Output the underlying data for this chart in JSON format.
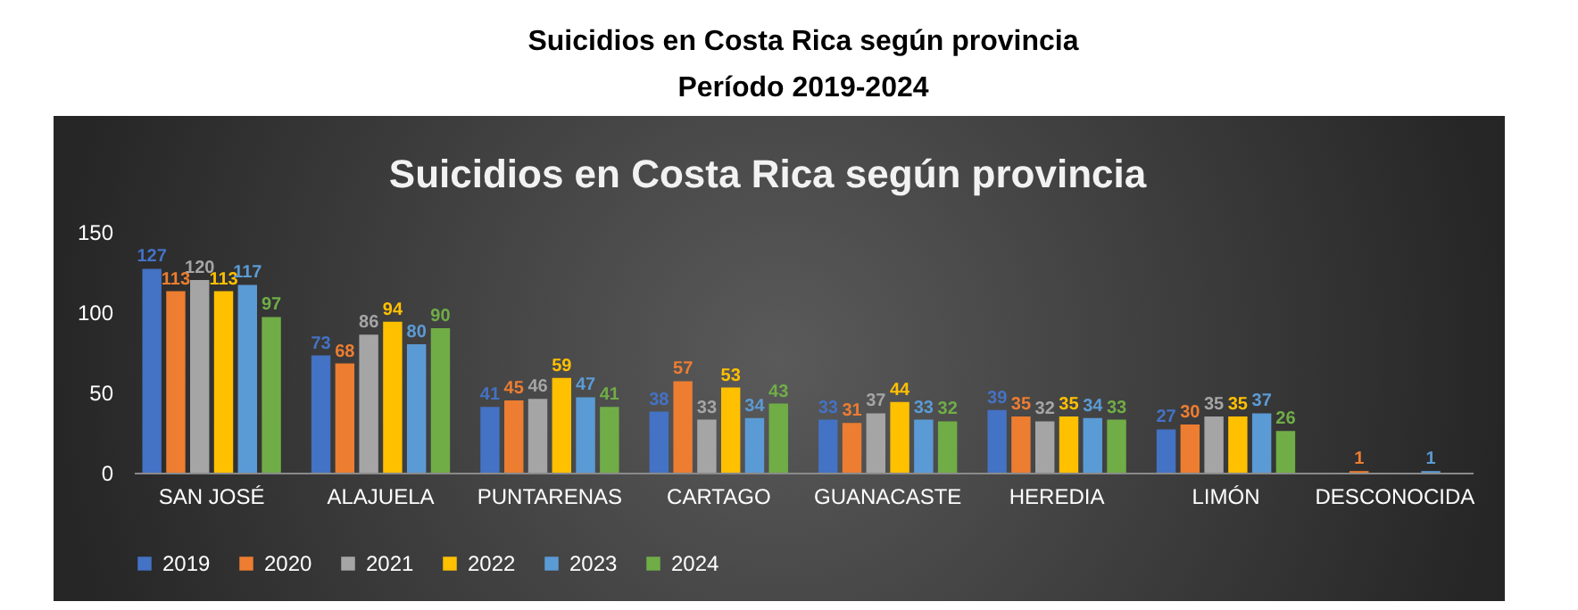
{
  "chart_data": {
    "type": "bar",
    "title": "Suicidios en Costa Rica según provincia",
    "subtitle": "Período 2019-2024",
    "annotations": [
      "Suicidios en Costa Rica según provincia"
    ],
    "categories": [
      "SAN JOSÉ",
      "ALAJUELA",
      "PUNTARENAS",
      "CARTAGO",
      "GUANACASTE",
      "HEREDIA",
      "LIMÓN",
      "DESCONOCIDA"
    ],
    "series": [
      {
        "name": "2019",
        "color": "#4472c4",
        "values": [
          127,
          73,
          41,
          38,
          33,
          39,
          27,
          null
        ]
      },
      {
        "name": "2020",
        "color": "#ed7d31",
        "values": [
          113,
          68,
          45,
          57,
          31,
          35,
          30,
          1
        ]
      },
      {
        "name": "2021",
        "color": "#a5a5a5",
        "values": [
          120,
          86,
          46,
          33,
          37,
          32,
          35,
          null
        ]
      },
      {
        "name": "2022",
        "color": "#ffc000",
        "values": [
          113,
          94,
          59,
          53,
          44,
          35,
          35,
          null
        ]
      },
      {
        "name": "2023",
        "color": "#5b9bd5",
        "values": [
          117,
          80,
          47,
          34,
          33,
          34,
          37,
          1
        ]
      },
      {
        "name": "2024",
        "color": "#70ad47",
        "values": [
          97,
          90,
          41,
          43,
          32,
          33,
          26,
          null
        ]
      }
    ],
    "ylim": [
      0,
      150
    ],
    "yticks": [
      0,
      50,
      100,
      150
    ],
    "grid": false,
    "legend": "bottom",
    "data_labels": true
  }
}
